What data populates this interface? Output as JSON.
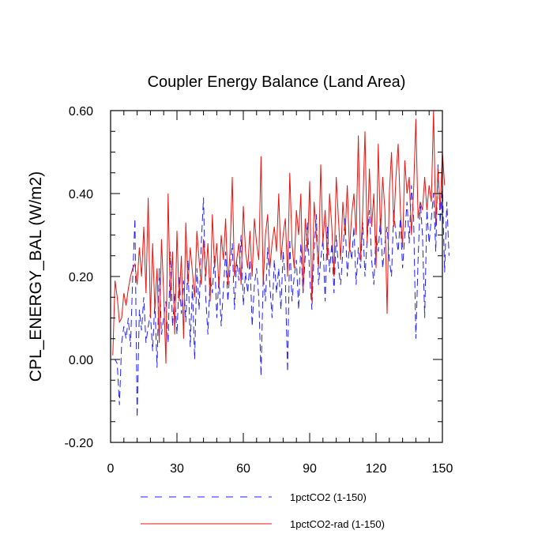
{
  "chart_data": {
    "type": "line",
    "title": "Coupler Energy Balance (Land Area)",
    "xlabel": "",
    "ylabel": "CPL_ENERGY_BAL  (W/m2)",
    "xlim": [
      0,
      150
    ],
    "ylim": [
      -0.2,
      0.6
    ],
    "x_ticks": [
      0,
      30,
      60,
      90,
      120,
      150
    ],
    "x_tick_labels": [
      "0",
      "30",
      "60",
      "90",
      "120",
      "150"
    ],
    "y_ticks": [
      -0.2,
      0.0,
      0.2,
      0.4,
      0.6
    ],
    "y_tick_labels": [
      "-0.20",
      "0.00",
      "0.20",
      "0.40",
      "0.60"
    ],
    "grid": false,
    "legend_position": "bottom",
    "series": [
      {
        "name": "1pctCO2 (1-150)",
        "color": "#1f1fff",
        "style": "dashed",
        "values": [
          0.0,
          0.0,
          -0.01,
          -0.11,
          0.04,
          0.08,
          0.05,
          0.1,
          0.03,
          0.2,
          0.34,
          -0.14,
          0.12,
          0.07,
          0.15,
          0.04,
          0.08,
          0.11,
          0.02,
          0.14,
          -0.02,
          0.22,
          0.06,
          0.1,
          0.14,
          0.04,
          0.26,
          0.08,
          0.16,
          0.06,
          0.2,
          0.11,
          0.19,
          0.09,
          0.24,
          0.03,
          0.18,
          0.0,
          0.22,
          0.12,
          0.28,
          0.39,
          0.15,
          0.06,
          0.2,
          0.16,
          0.25,
          0.1,
          0.2,
          0.08,
          0.17,
          0.26,
          0.14,
          0.22,
          0.28,
          0.12,
          0.24,
          0.19,
          0.3,
          0.13,
          0.21,
          0.16,
          0.24,
          0.08,
          0.18,
          0.22,
          0.15,
          -0.04,
          0.2,
          0.14,
          0.27,
          0.18,
          0.1,
          0.24,
          0.16,
          0.22,
          0.12,
          0.26,
          0.19,
          -0.03,
          0.29,
          0.14,
          0.2,
          0.24,
          0.12,
          0.28,
          0.16,
          0.25,
          0.33,
          0.2,
          0.12,
          0.26,
          0.35,
          0.18,
          0.24,
          0.29,
          0.14,
          0.32,
          0.21,
          0.28,
          0.16,
          0.3,
          0.22,
          0.18,
          0.26,
          0.34,
          0.2,
          0.28,
          0.24,
          0.32,
          0.18,
          0.27,
          0.22,
          0.33,
          0.2,
          0.29,
          0.36,
          0.24,
          0.18,
          0.3,
          0.26,
          0.34,
          0.22,
          0.28,
          0.32,
          0.24,
          0.2,
          0.36,
          0.3,
          0.26,
          0.34,
          0.22,
          0.3,
          0.38,
          0.28,
          0.42,
          0.34,
          0.05,
          0.24,
          0.38,
          0.3,
          0.1,
          0.36,
          0.28,
          0.34,
          0.4,
          0.26,
          0.47,
          0.33,
          0.42,
          0.21,
          0.38,
          0.25
        ]
      },
      {
        "name": "1pctCO2-rad (1-150)",
        "color": "#e8140f",
        "style": "solid",
        "values": [
          0.01,
          0.19,
          0.15,
          0.09,
          0.1,
          0.16,
          0.13,
          0.17,
          0.2,
          0.22,
          0.23,
          0.18,
          0.27,
          0.2,
          0.32,
          0.16,
          0.39,
          0.1,
          0.28,
          0.12,
          0.22,
          0.04,
          0.29,
          0.16,
          -0.01,
          0.4,
          0.14,
          0.26,
          0.06,
          0.31,
          0.14,
          0.25,
          0.05,
          0.33,
          0.18,
          0.27,
          0.21,
          0.15,
          0.31,
          0.24,
          0.18,
          0.29,
          0.2,
          0.28,
          0.14,
          0.35,
          0.22,
          0.28,
          0.17,
          0.3,
          0.24,
          0.34,
          0.18,
          0.26,
          0.44,
          0.2,
          0.24,
          0.28,
          0.18,
          0.37,
          0.26,
          0.22,
          0.31,
          0.2,
          0.34,
          0.28,
          0.24,
          0.49,
          0.18,
          0.3,
          0.35,
          0.22,
          0.28,
          0.32,
          0.26,
          0.4,
          0.24,
          0.3,
          0.34,
          0.2,
          0.45,
          0.28,
          0.22,
          0.36,
          0.3,
          0.4,
          0.16,
          0.34,
          0.26,
          0.43,
          0.14,
          0.38,
          0.3,
          0.22,
          0.47,
          0.28,
          0.36,
          0.24,
          0.4,
          0.32,
          0.2,
          0.44,
          0.34,
          0.24,
          0.38,
          0.3,
          0.42,
          0.26,
          0.35,
          0.4,
          0.3,
          0.54,
          0.24,
          0.36,
          0.55,
          0.28,
          0.46,
          0.32,
          0.4,
          0.22,
          0.52,
          0.3,
          0.44,
          0.36,
          0.11,
          0.4,
          0.5,
          0.32,
          0.44,
          0.52,
          0.36,
          0.27,
          0.48,
          0.4,
          0.44,
          0.3,
          0.41,
          0.58,
          0.34,
          0.38,
          0.36,
          0.44,
          0.36,
          0.42,
          0.38,
          0.6,
          0.32,
          0.46,
          0.36,
          0.5,
          0.42
        ]
      }
    ]
  }
}
